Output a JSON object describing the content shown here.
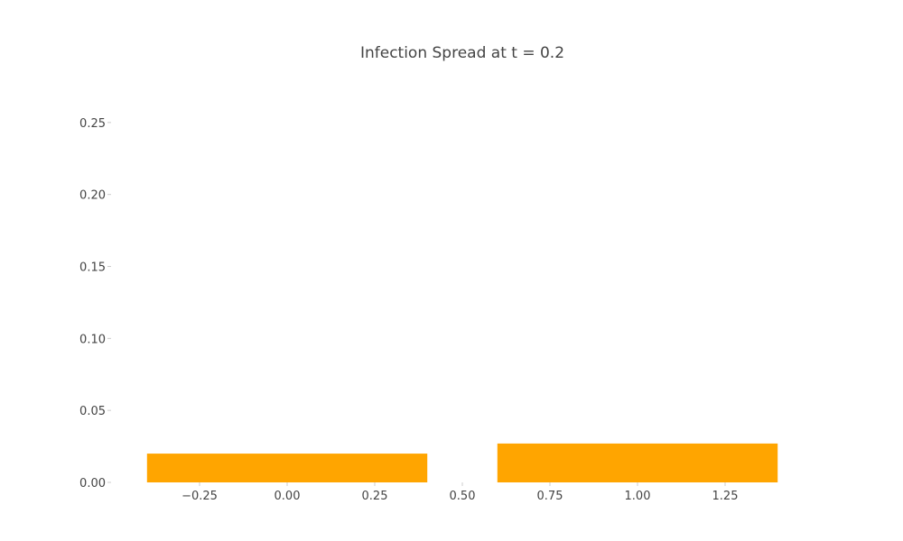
{
  "chart_data": {
    "type": "bar",
    "title": "Infection Spread at t = 0.2",
    "xlabel": "",
    "ylabel": "",
    "x": [
      0,
      1
    ],
    "values": [
      0.02,
      0.027
    ],
    "bar_width": 0.8,
    "xlim": [
      -0.5,
      1.5
    ],
    "ylim": [
      0,
      0.29
    ],
    "xticks": [
      -0.25,
      0.0,
      0.25,
      0.5,
      0.75,
      1.0,
      1.25
    ],
    "xtick_labels": [
      "−0.25",
      "0.00",
      "0.25",
      "0.50",
      "0.75",
      "1.00",
      "1.25"
    ],
    "yticks": [
      0.0,
      0.05,
      0.1,
      0.15,
      0.2,
      0.25
    ],
    "ytick_labels": [
      "0.00",
      "0.05",
      "0.10",
      "0.15",
      "0.20",
      "0.25"
    ],
    "grid": false,
    "bar_color": "#FFA500"
  }
}
